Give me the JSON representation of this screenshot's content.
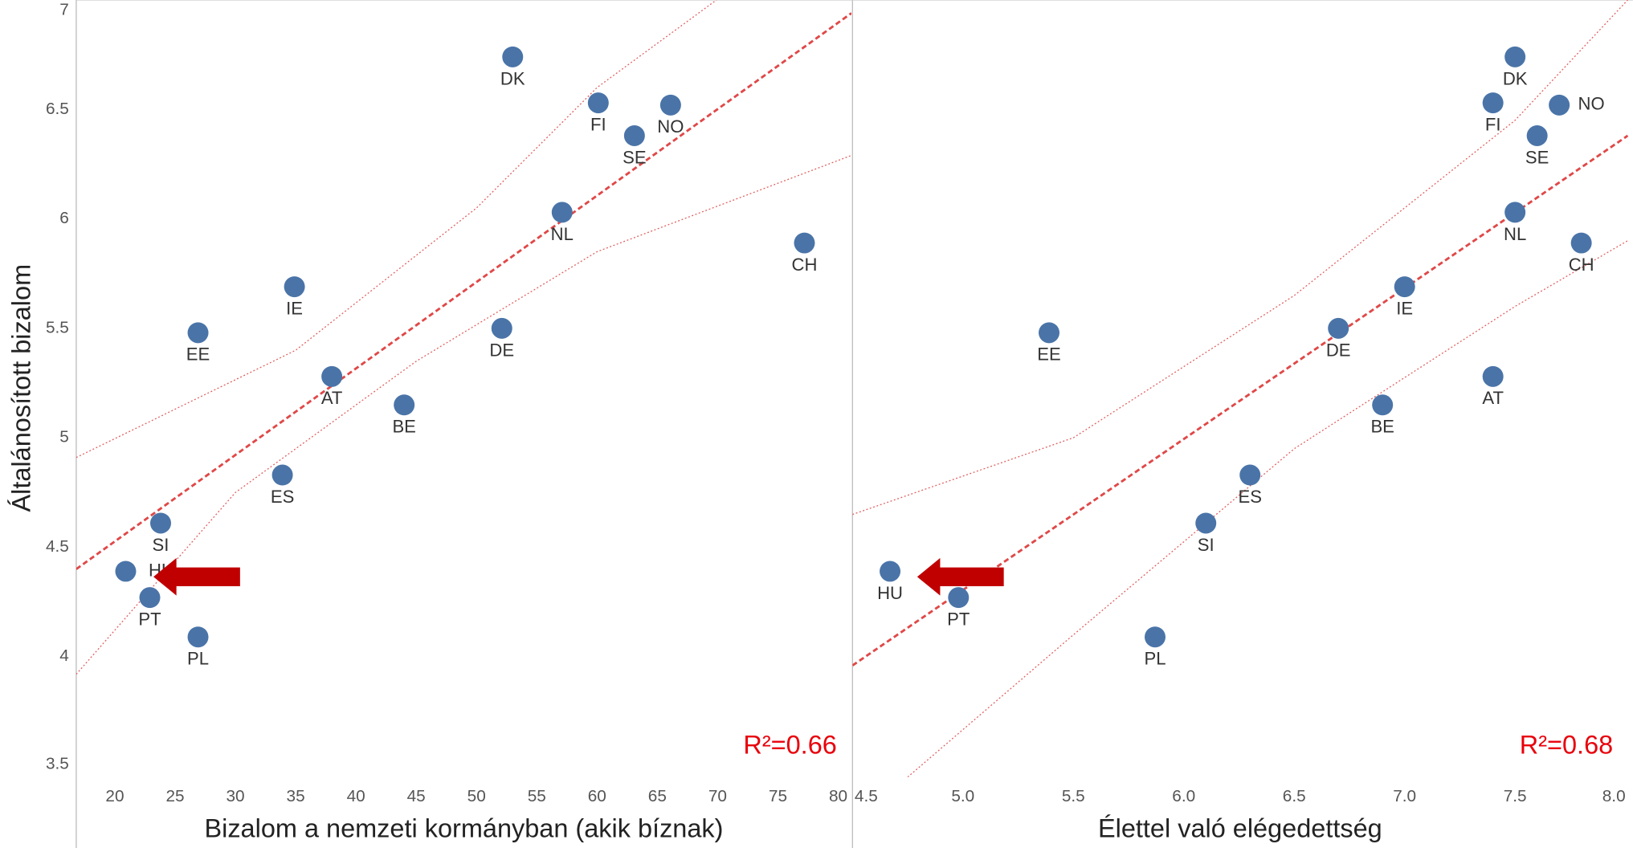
{
  "chart_data": [
    {
      "type": "scatter",
      "y_label": "Általánosított bizalom",
      "x_label": "Bizalom a nemzeti kormányban (akik bíznak)",
      "color": "#4a74a8",
      "annotation": "R²=0.66",
      "labels": [
        "DK",
        "FI",
        "NO",
        "SE",
        "NL",
        "CH",
        "IE",
        "EE",
        "DE",
        "AT",
        "BE",
        "ES",
        "SI",
        "HU",
        "PT",
        "PL"
      ],
      "x": [
        53.0,
        60.1,
        66.1,
        63.1,
        57.1,
        77.2,
        34.9,
        26.9,
        52.1,
        38.0,
        44.0,
        33.9,
        23.8,
        20.9,
        22.9,
        26.9
      ],
      "y": [
        6.74,
        6.53,
        6.52,
        6.38,
        6.03,
        5.89,
        5.69,
        5.48,
        5.5,
        5.28,
        5.15,
        4.83,
        4.61,
        4.39,
        4.27,
        4.09
      ],
      "trend": {
        "x": [
          16.8,
          81.1
        ],
        "y": [
          4.4,
          6.94
        ]
      },
      "upper": {
        "x": [
          16.8,
          35,
          50,
          60,
          69.9
        ],
        "y": [
          4.91,
          5.4,
          6.05,
          6.6,
          7.0
        ]
      },
      "lower": {
        "x": [
          16.8,
          30,
          45,
          60,
          81.1
        ],
        "y": [
          3.92,
          4.75,
          5.35,
          5.85,
          6.29
        ]
      },
      "xlim": [
        16.8,
        81.1
      ],
      "ylim": [
        3.45,
        7.0
      ],
      "xticks": [
        20,
        25,
        30,
        35,
        40,
        45,
        50,
        55,
        60,
        65,
        70,
        75,
        80
      ],
      "yticks": [
        3.5,
        4,
        4.5,
        5,
        5.5,
        6,
        6.5,
        7
      ]
    },
    {
      "type": "scatter",
      "x_label": "Élettel való elégedettség",
      "color": "#4a74a8",
      "annotation": "R²=0.68",
      "labels": [
        "DK",
        "FI",
        "NO",
        "SE",
        "NL",
        "CH",
        "IE",
        "EE",
        "DE",
        "AT",
        "BE",
        "ES",
        "SI",
        "HU",
        "PT",
        "PL"
      ],
      "x": [
        7.5,
        7.4,
        7.7,
        7.6,
        7.5,
        7.8,
        7.0,
        5.39,
        6.7,
        7.4,
        6.9,
        6.3,
        6.1,
        4.67,
        4.98,
        5.87
      ],
      "y": [
        6.74,
        6.53,
        6.52,
        6.38,
        6.03,
        5.89,
        5.69,
        5.48,
        5.5,
        5.28,
        5.15,
        4.83,
        4.61,
        4.39,
        4.27,
        4.09
      ],
      "trend": {
        "x": [
          4.5,
          8.01
        ],
        "y": [
          3.96,
          6.38
        ]
      },
      "upper": {
        "x": [
          4.5,
          5.5,
          6.5,
          7.5,
          8.01
        ],
        "y": [
          4.65,
          5.0,
          5.65,
          6.45,
          7.0
        ]
      },
      "lower": {
        "x": [
          4.75,
          5.5,
          6.5,
          7.5,
          8.01
        ],
        "y": [
          3.45,
          4.1,
          4.95,
          5.6,
          5.9
        ]
      },
      "xlim": [
        4.5,
        8.01
      ],
      "ylim": [
        3.45,
        7.0
      ],
      "xticks": [
        {
          "value": 4.5,
          "label": "4.5"
        },
        {
          "value": 5,
          "label": "5.0"
        },
        {
          "value": 5.5,
          "label": "5.5"
        },
        {
          "value": 6,
          "label": "6.0"
        },
        {
          "value": 6.5,
          "label": "6.5"
        },
        {
          "value": 7,
          "label": "7.0"
        },
        {
          "value": 7.5,
          "label": "7.5"
        },
        {
          "value": 8,
          "label": "8.0"
        }
      ]
    }
  ]
}
